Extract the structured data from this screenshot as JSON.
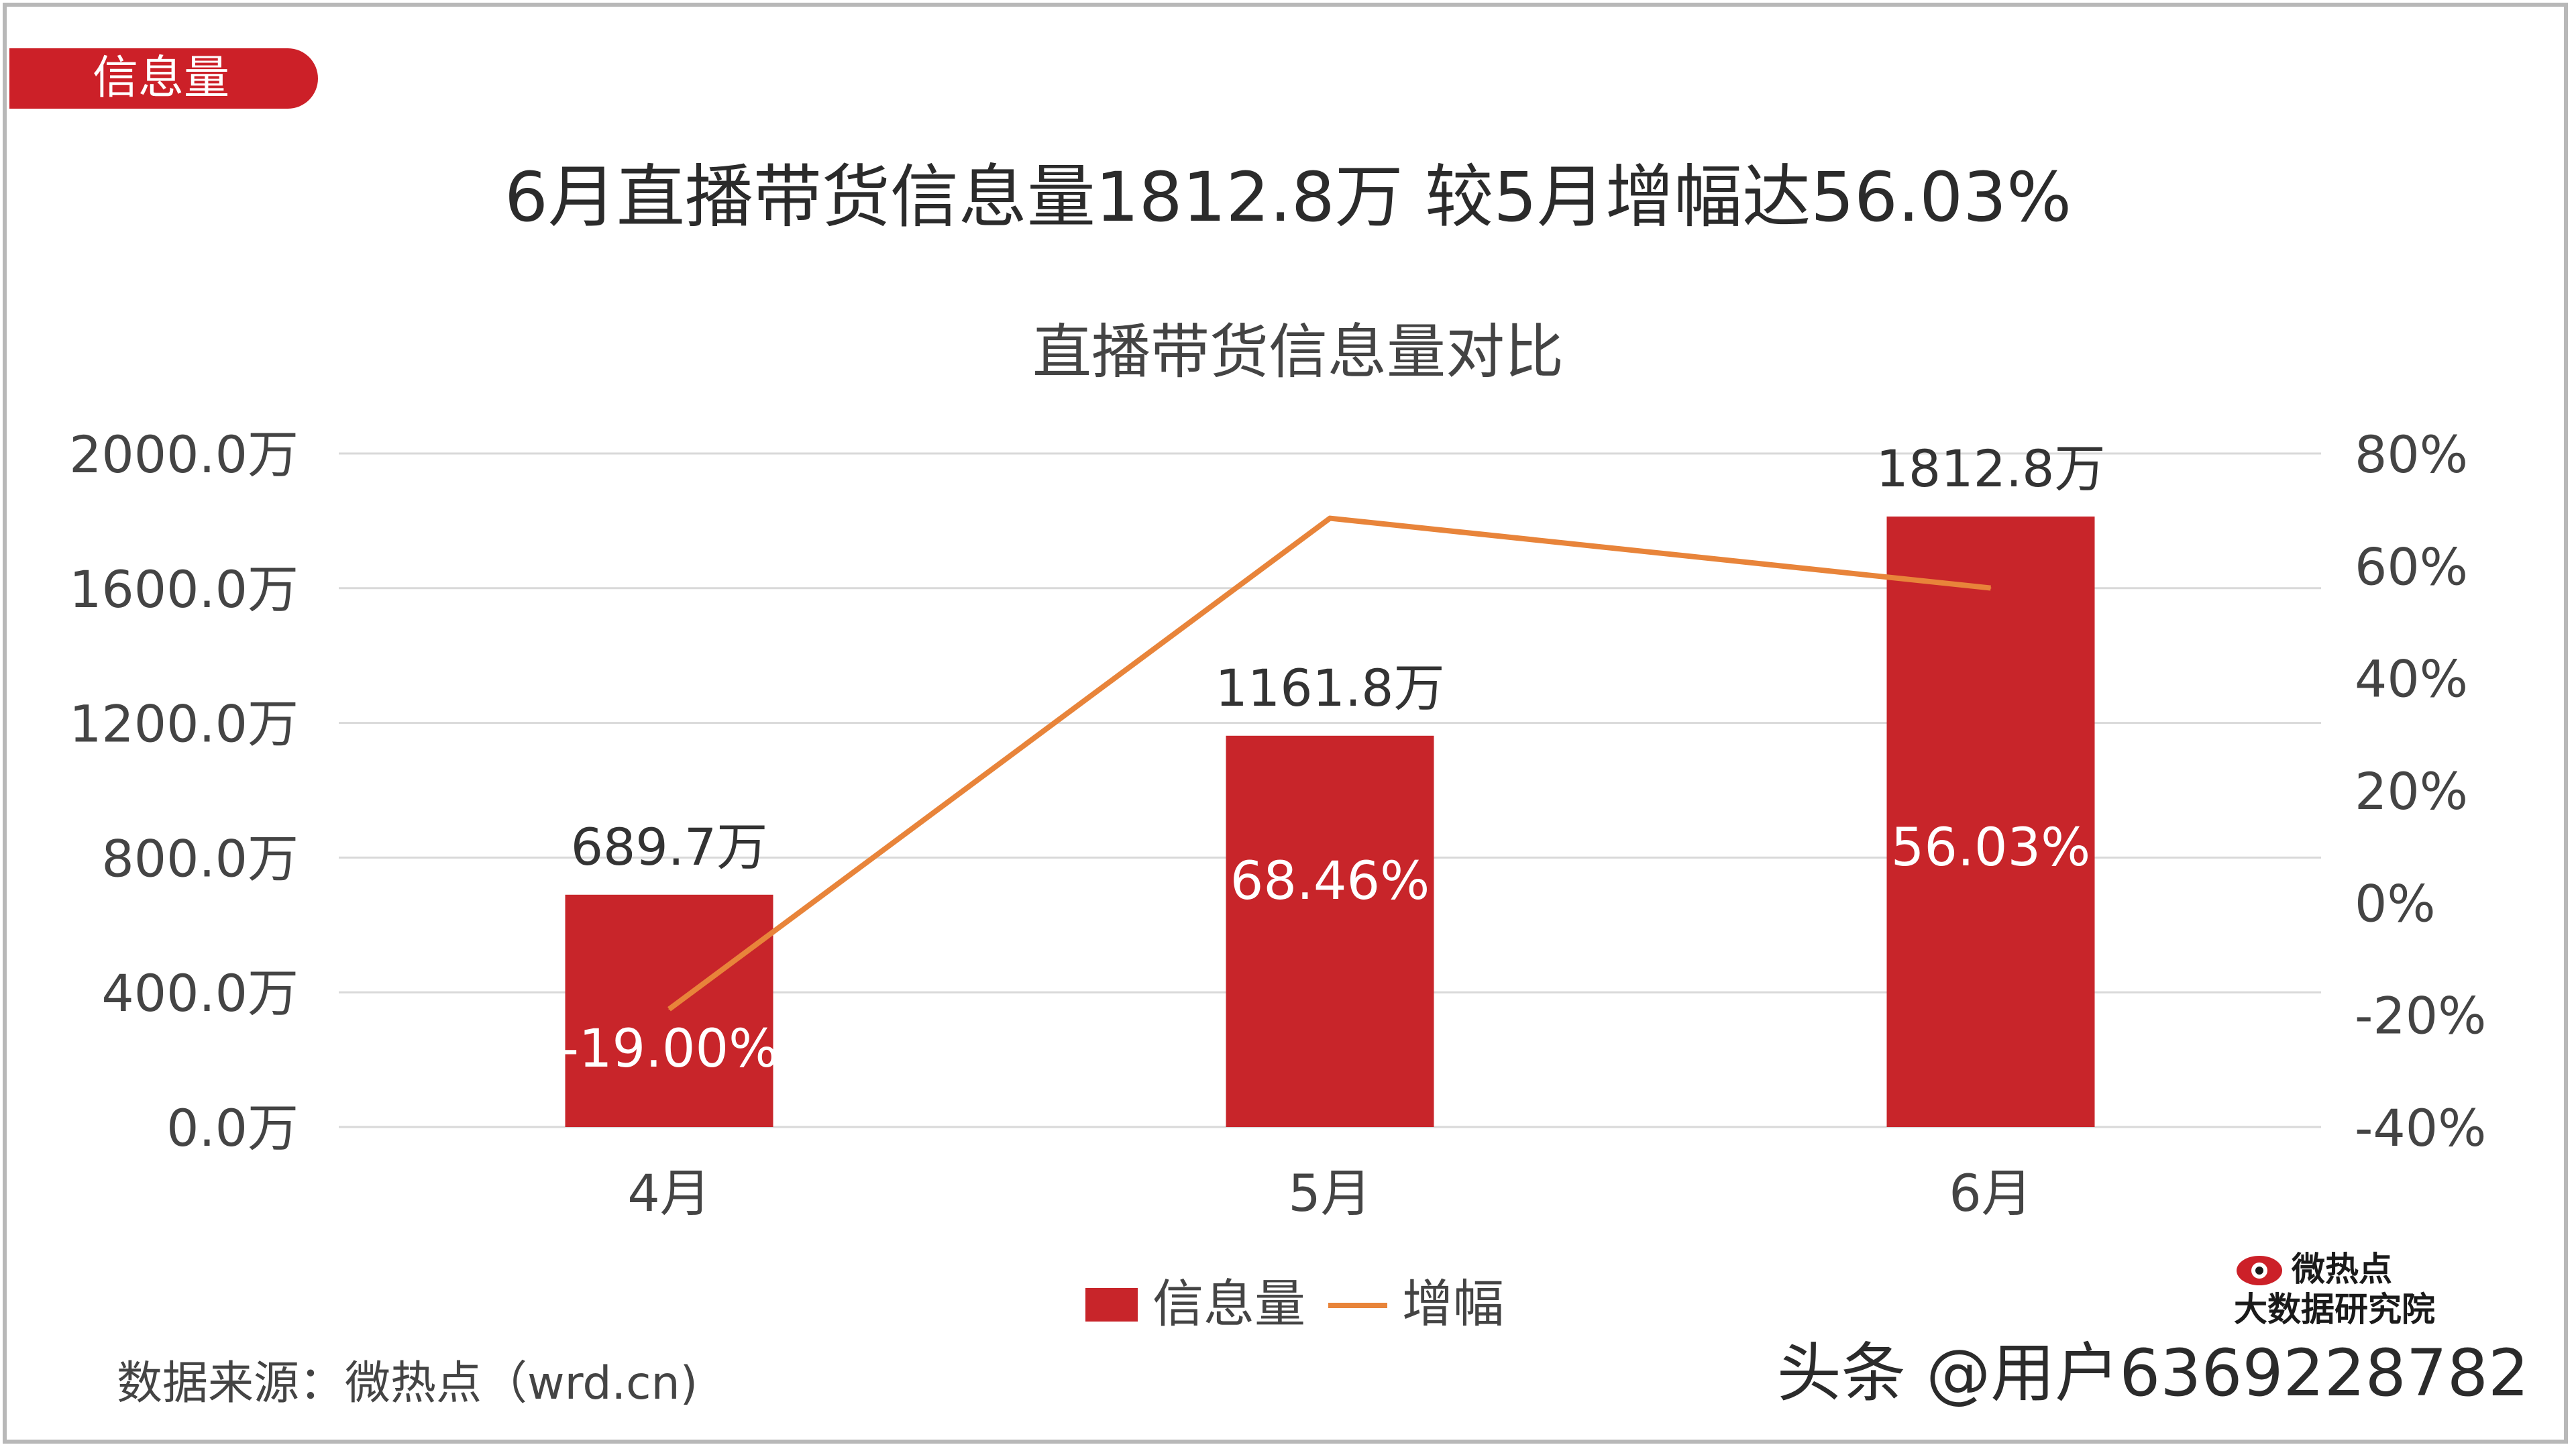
{
  "tag": "信息量",
  "headline": "6月直播带货信息量1812.8万 较5月增幅达56.03%",
  "source": "数据来源：微热点（wrd.cn)",
  "watermark": "头条 @用户6369228782",
  "logo": {
    "name": "微热点",
    "subtitle": "大数据研究院"
  },
  "colors": {
    "bar": "#c8252a",
    "line": "#e8843a",
    "tag": "#cc2028",
    "grid": "#d9d9d9"
  },
  "chart_data": {
    "type": "bar",
    "title": "直播带货信息量对比",
    "categories": [
      "4月",
      "5月",
      "6月"
    ],
    "series": [
      {
        "name": "信息量",
        "type": "bar",
        "axis": "left",
        "values": [
          689.7,
          1161.8,
          1812.8
        ],
        "data_labels": [
          "689.7万",
          "1161.8万",
          "1812.8万"
        ]
      },
      {
        "name": "增幅",
        "type": "line",
        "axis": "right",
        "values": [
          -19.0,
          68.46,
          56.03
        ],
        "data_labels": [
          "-19.00%",
          "68.46%",
          "56.03%"
        ]
      }
    ],
    "y_left": {
      "range": [
        0,
        2000
      ],
      "ticks": [
        "0.0万",
        "400.0万",
        "800.0万",
        "1200.0万",
        "1600.0万",
        "2000.0万"
      ]
    },
    "y_right": {
      "range": [
        -40,
        80
      ],
      "ticks": [
        "-40%",
        "-20%",
        "0%",
        "20%",
        "40%",
        "60%",
        "80%"
      ]
    },
    "grid": true,
    "legend": "bottom-center"
  }
}
